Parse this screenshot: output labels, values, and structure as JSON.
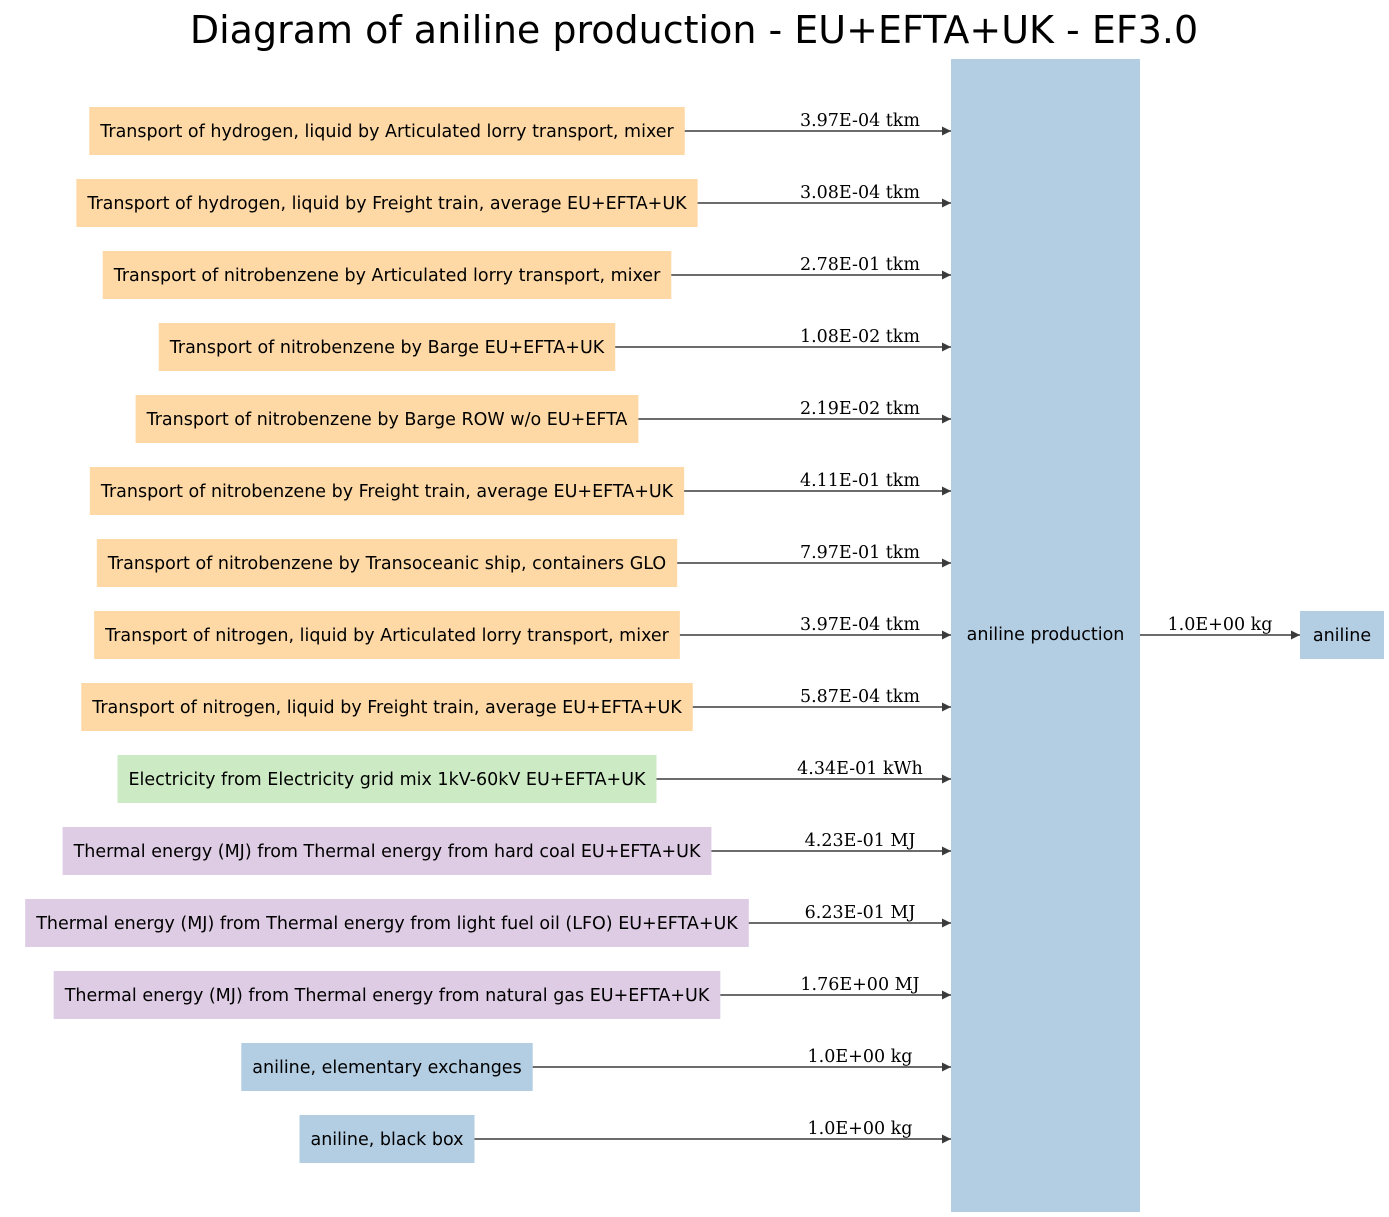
{
  "title": "Diagram of aniline production - EU+EFTA+UK - EF3.0",
  "colors": {
    "transport": "#fed9a6",
    "electricity": "#ccebc5",
    "thermal": "#decbe4",
    "material": "#b3cde3",
    "edge": "#3b3b3b"
  },
  "center": {
    "label": "aniline production",
    "color": "#b3cde3"
  },
  "output": {
    "label": "aniline",
    "amount": "1.0E+00 kg",
    "color": "#b3cde3"
  },
  "inputs": [
    {
      "label": "Transport of hydrogen, liquid by Articulated lorry transport, mixer",
      "amount": "3.97E-04 tkm",
      "category": "transport"
    },
    {
      "label": "Transport of hydrogen, liquid by Freight train, average EU+EFTA+UK",
      "amount": "3.08E-04 tkm",
      "category": "transport"
    },
    {
      "label": "Transport of nitrobenzene by Articulated lorry transport, mixer",
      "amount": "2.78E-01 tkm",
      "category": "transport"
    },
    {
      "label": "Transport of nitrobenzene by Barge EU+EFTA+UK",
      "amount": "1.08E-02 tkm",
      "category": "transport"
    },
    {
      "label": "Transport of nitrobenzene by Barge ROW w/o EU+EFTA",
      "amount": "2.19E-02 tkm",
      "category": "transport"
    },
    {
      "label": "Transport of nitrobenzene by Freight train, average EU+EFTA+UK",
      "amount": "4.11E-01 tkm",
      "category": "transport"
    },
    {
      "label": "Transport of nitrobenzene by Transoceanic ship, containers GLO",
      "amount": "7.97E-01 tkm",
      "category": "transport"
    },
    {
      "label": "Transport of nitrogen, liquid by Articulated lorry transport, mixer",
      "amount": "3.97E-04 tkm",
      "category": "transport"
    },
    {
      "label": "Transport of nitrogen, liquid by Freight train, average EU+EFTA+UK",
      "amount": "5.87E-04 tkm",
      "category": "transport"
    },
    {
      "label": "Electricity from Electricity grid mix 1kV-60kV EU+EFTA+UK",
      "amount": "4.34E-01 kWh",
      "category": "electricity"
    },
    {
      "label": "Thermal energy (MJ) from Thermal energy from hard coal EU+EFTA+UK",
      "amount": "4.23E-01 MJ",
      "category": "thermal"
    },
    {
      "label": "Thermal energy (MJ) from Thermal energy from light fuel oil (LFO) EU+EFTA+UK",
      "amount": "6.23E-01 MJ",
      "category": "thermal"
    },
    {
      "label": "Thermal energy (MJ) from Thermal energy from natural gas EU+EFTA+UK",
      "amount": "1.76E+00 MJ",
      "category": "thermal"
    },
    {
      "label": "aniline, elementary exchanges",
      "amount": "1.0E+00 kg",
      "category": "material"
    },
    {
      "label": "aniline, black box",
      "amount": "1.0E+00 kg",
      "category": "material"
    }
  ]
}
